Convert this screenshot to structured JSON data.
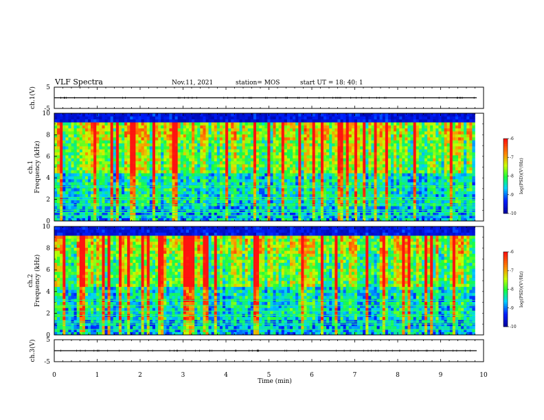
{
  "header": {
    "title": "VLF Spectra",
    "date": "Nov.11, 2021",
    "station": "station= MOS",
    "start": "start  UT =   18: 40: 1"
  },
  "colors": {
    "background": "#000000",
    "low": "#0018ff",
    "mid": "#19ff3a",
    "high": "#ff1a10",
    "waveform": "#000000"
  },
  "chart_data": [
    {
      "type": "line",
      "panel": "ch1-waveform",
      "ylabel": "ch.1(V)",
      "ylim": [
        -5,
        5
      ],
      "yticks": [
        "5",
        "-5"
      ],
      "x": [
        0,
        10
      ],
      "y": [
        0,
        0
      ]
    },
    {
      "type": "heatmap",
      "panel": "ch1-spectrogram",
      "ylabel": "ch.1\nFrequency (kHz)",
      "ylim": [
        0,
        10
      ],
      "yticks": [
        "0",
        "2",
        "4",
        "6",
        "8",
        "10"
      ],
      "xlim": [
        0,
        10
      ],
      "data_xlim": [
        0,
        9.8
      ],
      "band_lines_khz": [
        0.5,
        0.8,
        1.0,
        1.5,
        2.0,
        2.2,
        3.2
      ],
      "colorbar": {
        "label": "log(PSD)(V²/Hz)",
        "range": [
          -10,
          -6
        ],
        "ticks": [
          "-6",
          "-7",
          "-8",
          "-9",
          "-10"
        ]
      }
    },
    {
      "type": "heatmap",
      "panel": "ch2-spectrogram",
      "ylabel": "ch.2\nFrequency (kHz)",
      "ylim": [
        0,
        10
      ],
      "yticks": [
        "0",
        "2",
        "4",
        "6",
        "8",
        "10"
      ],
      "xlim": [
        0,
        10
      ],
      "data_xlim": [
        0,
        9.8
      ],
      "band_lines_khz": [
        0.5,
        1.0,
        1.2,
        1.8,
        2.2,
        2.7,
        3.2
      ],
      "colorbar": {
        "label": "log(PSD)(V²/Hz)",
        "range": [
          -10,
          -6
        ],
        "ticks": [
          "-6",
          "-7",
          "-8",
          "-9",
          "-10"
        ]
      }
    },
    {
      "type": "line",
      "panel": "ch3-waveform",
      "ylabel": "ch.3(V)",
      "ylim": [
        -5,
        5
      ],
      "yticks": [
        "5",
        "-5"
      ],
      "x": [
        0,
        10
      ],
      "y": [
        0,
        0
      ]
    }
  ],
  "xaxis": {
    "label": "Time  (min)",
    "range": [
      0,
      10
    ],
    "ticks": [
      "0",
      "1",
      "2",
      "3",
      "4",
      "5",
      "6",
      "7",
      "8",
      "9",
      "10"
    ]
  }
}
